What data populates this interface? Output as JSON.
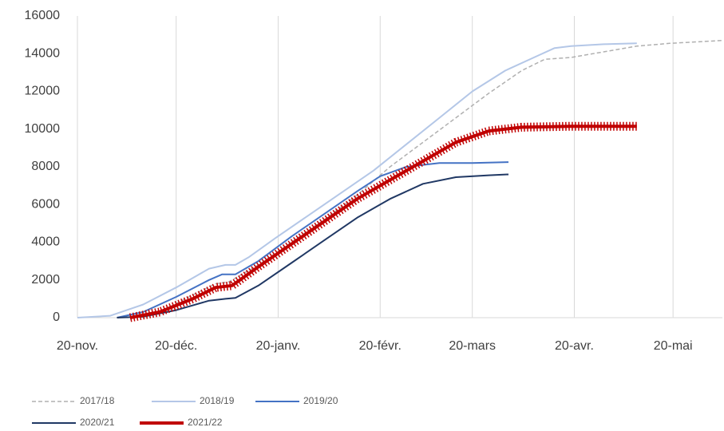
{
  "chart_data": {
    "type": "line",
    "xlim": [
      0,
      196
    ],
    "xticks": [
      {
        "value": 0,
        "label": "20-nov."
      },
      {
        "value": 30,
        "label": "20-déc."
      },
      {
        "value": 61,
        "label": "20-janv."
      },
      {
        "value": 92,
        "label": "20-févr."
      },
      {
        "value": 120,
        "label": "20-mars"
      },
      {
        "value": 151,
        "label": "20-avr."
      },
      {
        "value": 181,
        "label": "20-mai"
      }
    ],
    "ylim": [
      0,
      16000
    ],
    "yticks": [
      0,
      2000,
      4000,
      6000,
      8000,
      10000,
      12000,
      14000,
      16000
    ],
    "grid": "x",
    "legend": "bottom-left",
    "series": [
      {
        "name": "2017/18",
        "color": "#b0b0b0",
        "dashed": true,
        "x": [
          15,
          25,
          35,
          42,
          46,
          55,
          65,
          75,
          85,
          95,
          105,
          115,
          125,
          135,
          142,
          150,
          160,
          170,
          180,
          196
        ],
        "values": [
          0,
          300,
          1200,
          1800,
          1900,
          2800,
          4000,
          5200,
          6500,
          8000,
          9300,
          10600,
          11900,
          13100,
          13700,
          13800,
          14100,
          14400,
          14550,
          14700
        ]
      },
      {
        "name": "2018/19",
        "color": "#b4c7e7",
        "x": [
          0,
          10,
          20,
          30,
          40,
          45,
          48,
          52,
          60,
          70,
          80,
          90,
          100,
          110,
          120,
          130,
          140,
          145,
          150,
          160,
          170
        ],
        "values": [
          0,
          100,
          700,
          1600,
          2600,
          2800,
          2800,
          3200,
          4200,
          5400,
          6600,
          7800,
          9200,
          10600,
          12000,
          13100,
          13900,
          14300,
          14400,
          14500,
          14550
        ]
      },
      {
        "name": "2019/20",
        "color": "#4472c4",
        "x": [
          12,
          20,
          30,
          40,
          44,
          48,
          55,
          65,
          75,
          85,
          92,
          100,
          110,
          120,
          131
        ],
        "values": [
          0,
          300,
          1100,
          2000,
          2300,
          2300,
          3000,
          4300,
          5500,
          6700,
          7500,
          8000,
          8200,
          8200,
          8250
        ]
      },
      {
        "name": "2020/21",
        "color": "#203864",
        "x": [
          12,
          20,
          30,
          40,
          45,
          48,
          55,
          65,
          75,
          85,
          95,
          105,
          115,
          125,
          131
        ],
        "values": [
          0,
          50,
          400,
          900,
          1000,
          1050,
          1700,
          2900,
          4100,
          5300,
          6300,
          7100,
          7450,
          7550,
          7600
        ]
      },
      {
        "name": "2021/22",
        "color": "#c00000",
        "markers": "cross",
        "x": [
          16,
          25,
          35,
          42,
          47,
          55,
          65,
          75,
          85,
          95,
          105,
          115,
          125,
          135,
          150,
          170
        ],
        "values": [
          0,
          300,
          1000,
          1600,
          1700,
          2700,
          3900,
          5100,
          6300,
          7300,
          8300,
          9300,
          9900,
          10100,
          10150,
          10150
        ]
      }
    ]
  }
}
